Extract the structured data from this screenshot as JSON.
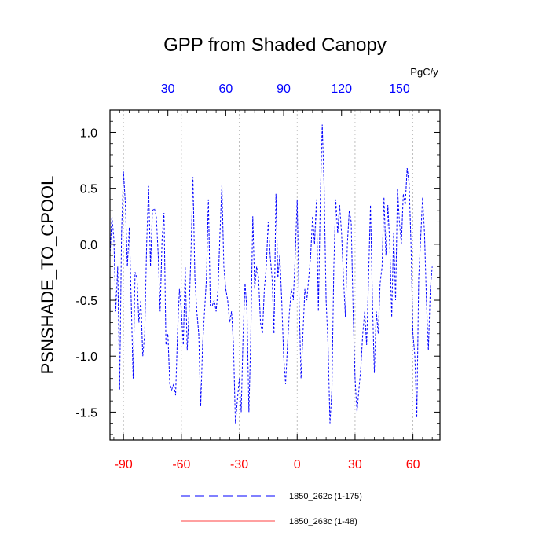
{
  "chart_data": {
    "type": "line",
    "title": "GPP from Shaded Canopy",
    "ylabel": "PSNSHADE_TO_CPOOL",
    "top_axis_unit": "PgC/y",
    "ylim": [
      -1.75,
      1.2
    ],
    "xlim": [
      -97,
      74
    ],
    "x_bottom_ticks": [
      -90,
      -60,
      -30,
      0,
      30,
      60
    ],
    "x_bottom_tick_labels": [
      "-90",
      "-60",
      "-30",
      "0",
      "30",
      "60"
    ],
    "x_top_ticks": [
      30,
      60,
      90,
      120,
      150
    ],
    "x_top_tick_labels": [
      "30",
      "60",
      "90",
      "120",
      "150"
    ],
    "top_axis_offset": 97,
    "y_ticks": [
      1.0,
      0.5,
      0.0,
      -0.5,
      -1.0,
      -1.5
    ],
    "y_tick_labels": [
      "1.0",
      "0.5",
      "0.0",
      "-0.5",
      "-1.0",
      "-1.5"
    ],
    "grid": "vertical dotted at bottom ticks",
    "series": [
      {
        "name": "1850_262c (1-175)",
        "color": "#0000ff",
        "style": "dashed",
        "x_start": -97,
        "x_step": 1,
        "values": [
          -0.1,
          0.25,
          0.05,
          -0.6,
          -0.2,
          -1.3,
          0.1,
          0.65,
          0.35,
          -0.2,
          0.15,
          -0.5,
          -1.2,
          -0.25,
          -0.3,
          -0.7,
          -0.5,
          -1.0,
          -0.8,
          0.0,
          0.52,
          -0.2,
          0.3,
          0.32,
          0.25,
          -0.1,
          -0.6,
          0.05,
          0.28,
          -0.9,
          -0.8,
          -1.25,
          -1.3,
          -1.25,
          -1.35,
          -0.8,
          -0.4,
          -0.6,
          -0.9,
          -0.2,
          -0.95,
          -0.6,
          -0.05,
          0.6,
          -0.3,
          -0.6,
          -0.8,
          -1.45,
          -0.9,
          -0.6,
          -0.3,
          0.4,
          -0.55,
          -0.55,
          -0.5,
          -0.6,
          -0.4,
          0.1,
          0.53,
          -0.2,
          -0.4,
          -0.5,
          -0.7,
          -0.6,
          -0.9,
          -1.6,
          -1.4,
          -1.2,
          -1.5,
          -0.8,
          -0.35,
          -0.6,
          -1.5,
          -0.8,
          0.25,
          -0.4,
          -0.2,
          -0.3,
          -0.7,
          -0.8,
          -0.4,
          -0.2,
          0.2,
          -0.1,
          -0.3,
          -0.8,
          0.45,
          -0.3,
          -0.1,
          -0.5,
          -1.0,
          -1.25,
          -0.9,
          -0.6,
          -0.4,
          -0.5,
          -0.1,
          0.4,
          -0.5,
          -1.2,
          -0.8,
          -0.4,
          -0.5,
          -0.3,
          -0.1,
          0.25,
          0.0,
          0.4,
          -0.6,
          0.4,
          1.07,
          0.5,
          -0.5,
          -0.9,
          -1.6,
          -1.3,
          -0.2,
          0.4,
          0.1,
          0.35,
          0.1,
          -0.3,
          -0.65,
          0.0,
          0.3,
          0.2,
          -0.6,
          -1.2,
          -1.5,
          -1.3,
          -1.1,
          -0.8,
          -0.6,
          -0.9,
          -0.3,
          0.35,
          -0.5,
          -1.15,
          -0.6,
          -0.8,
          -0.35,
          -0.2,
          0.42,
          -0.1,
          0.35,
          0.0,
          -0.65,
          0.1,
          -0.5,
          0.5,
          0.2,
          0.0,
          0.45,
          0.35,
          0.68,
          0.55,
          0.0,
          -0.8,
          -1.0,
          -1.55,
          -0.3,
          0.05,
          0.42,
          0.1,
          -0.5,
          -0.95,
          -0.4,
          -0.2
        ]
      },
      {
        "name": "1850_263c (1-48)",
        "color": "#ff0000",
        "style": "solid",
        "values": []
      }
    ]
  }
}
